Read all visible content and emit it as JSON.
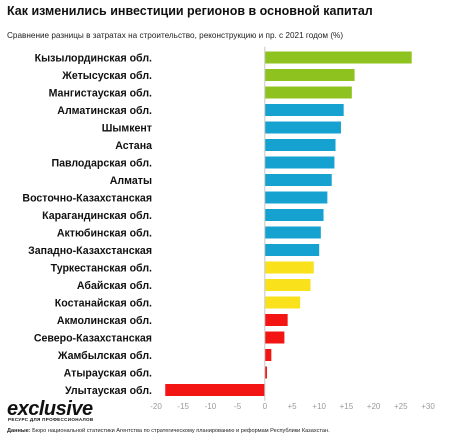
{
  "title": "Как изменились инвестиции регионов в основной капитал",
  "subtitle": "Сравнение разницы в затратах на строительство, реконструкцию и пр. с 2021 годом (%)",
  "logo": {
    "text": "exclusive",
    "tagline": "ресурс для профессионалов"
  },
  "source": {
    "label": "Данные:",
    "text": "Бюро национальной статистики Агентства по стратегическому планированию и реформам Республики Казахстан."
  },
  "colors": {
    "green": "#8dc21f",
    "blue": "#16a2d0",
    "yellow": "#f9e21b",
    "red": "#f31414",
    "zero_line": "#c8c8c8"
  },
  "chart_data": {
    "type": "bar",
    "orientation": "horizontal",
    "xlim": [
      -20,
      30
    ],
    "tick_values": [
      -20,
      -15,
      -10,
      -5,
      0,
      5,
      10,
      15,
      20,
      25,
      30
    ],
    "tick_labels": [
      "-20",
      "-15",
      "-10",
      "-5",
      "0",
      "+5",
      "+10",
      "+15",
      "+20",
      "+25",
      "+30"
    ],
    "grid": false,
    "categories": [
      "Кызылординская обл.",
      "Жетысуская обл.",
      "Мангистауская обл.",
      "Алматинская обл.",
      "Шымкент",
      "Астана",
      "Павлодарская обл.",
      "Алматы",
      "Восточно-Казахстанская",
      "Карагандинская обл.",
      "Актюбинская обл.",
      "Западно-Казахстанская",
      "Туркестанская обл.",
      "Абайская обл.",
      "Костанайская обл.",
      "Акмолинская обл.",
      "Северо-Казахстанская",
      "Жамбылская обл.",
      "Атырауская обл.",
      "Улытауская обл."
    ],
    "values": [
      27,
      16.5,
      16,
      14.5,
      14,
      13,
      12.8,
      12.3,
      11.5,
      10.8,
      10.3,
      10,
      9,
      8.4,
      6.5,
      4.2,
      3.6,
      1.2,
      0.4,
      -18.3
    ],
    "bar_colors": [
      "#8dc21f",
      "#8dc21f",
      "#8dc21f",
      "#16a2d0",
      "#16a2d0",
      "#16a2d0",
      "#16a2d0",
      "#16a2d0",
      "#16a2d0",
      "#16a2d0",
      "#16a2d0",
      "#16a2d0",
      "#f9e21b",
      "#f9e21b",
      "#f9e21b",
      "#f31414",
      "#f31414",
      "#f31414",
      "#f31414",
      "#f31414"
    ]
  }
}
